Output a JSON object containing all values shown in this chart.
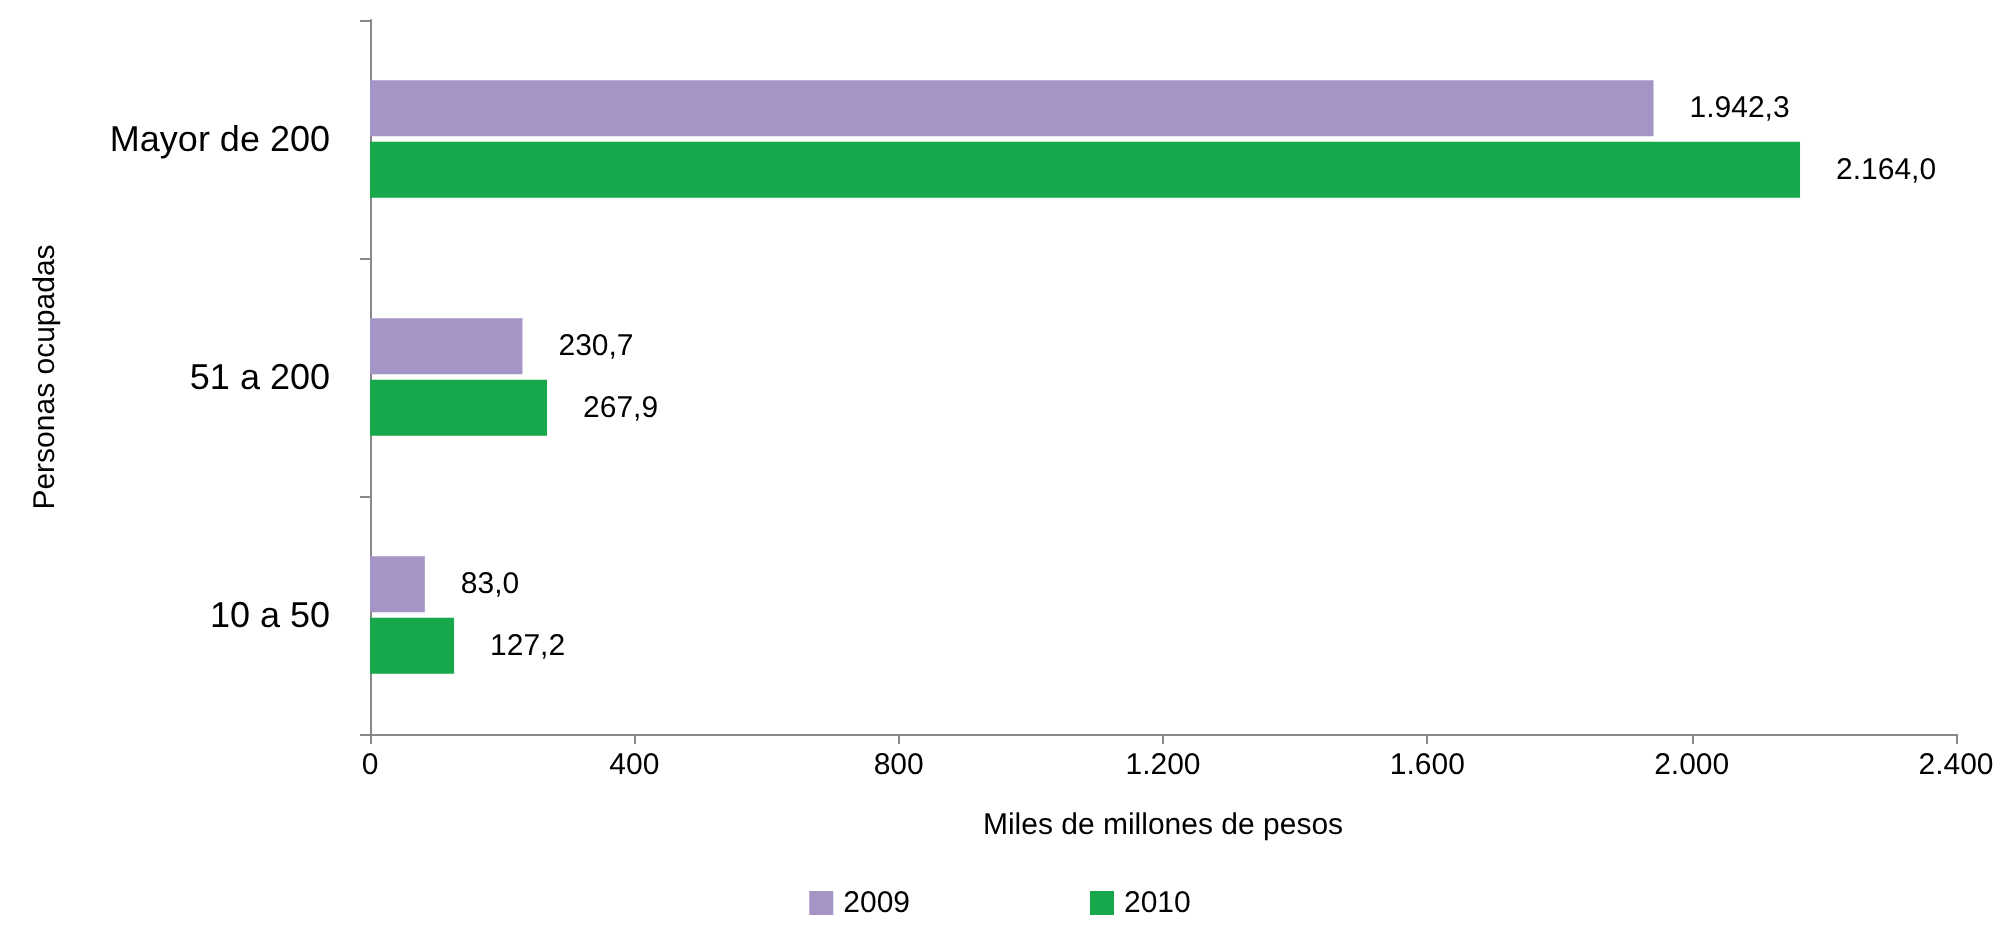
{
  "chart_data": {
    "type": "bar",
    "orientation": "horizontal",
    "xlabel": "Miles de millones de pesos",
    "ylabel": "Personas ocupadas",
    "categories": [
      "Mayor de 200",
      "51 a 200",
      "10 a 50"
    ],
    "series": [
      {
        "name": "2009",
        "color": "#a594c6",
        "values": [
          1942.3,
          230.7,
          83.0
        ],
        "value_labels": [
          "1.942,3",
          "230,7",
          "83,0"
        ]
      },
      {
        "name": "2010",
        "color": "#16a84a",
        "values": [
          2164.0,
          267.9,
          127.2
        ],
        "value_labels": [
          "2.164,0",
          "267,9",
          "127,2"
        ]
      }
    ],
    "xlim": [
      0,
      2400
    ],
    "xticks": [
      0,
      400,
      800,
      {
        "value": 1200,
        "label": "1.200"
      },
      {
        "value": 1600,
        "label": "1.600"
      },
      {
        "value": 2000,
        "label": "2.000"
      },
      {
        "value": 2400,
        "label": "2.400"
      }
    ],
    "legend": "bottom",
    "grid": false
  }
}
